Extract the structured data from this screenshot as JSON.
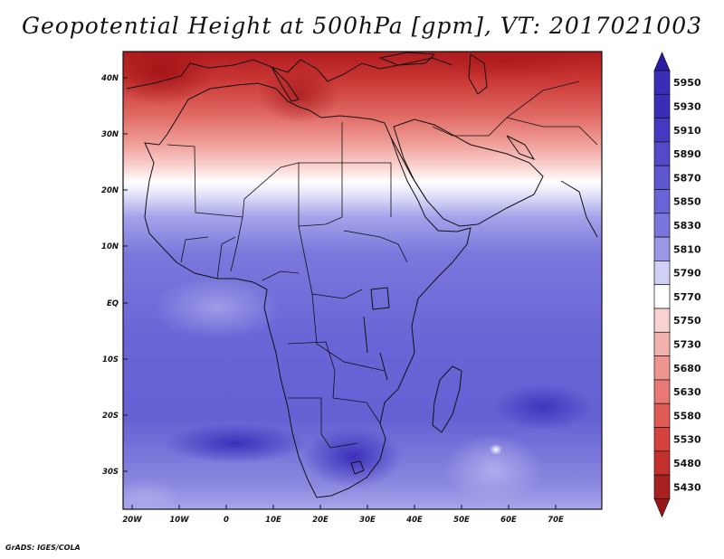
{
  "title": "Geopotential Height at 500hPa [gpm], VT: 2017021003",
  "credit": "GrADS: IGES/COLA",
  "map": {
    "lat_labels": [
      "40N",
      "30N",
      "20N",
      "10N",
      "EQ",
      "10S",
      "20S",
      "30S"
    ],
    "lon_labels": [
      "20W",
      "10W",
      "0",
      "10E",
      "20E",
      "30E",
      "40E",
      "50E",
      "60E",
      "70E"
    ]
  },
  "colorbar": {
    "levels": [
      "5950",
      "5930",
      "5910",
      "5890",
      "5870",
      "5850",
      "5830",
      "5810",
      "5790",
      "5770",
      "5750",
      "5730",
      "5680",
      "5630",
      "5580",
      "5530",
      "5480",
      "5430"
    ],
    "colors": [
      "#3a2db8",
      "#3a2db8",
      "#4638c0",
      "#5449c8",
      "#5e56cf",
      "#6a64d6",
      "#7a76dc",
      "#9a98e6",
      "#cfd0f4",
      "#ffffff",
      "#f7d2d0",
      "#f4b2ae",
      "#ee9590",
      "#e87874",
      "#e05a56",
      "#d6413e",
      "#c4302e",
      "#a81f20"
    ]
  }
}
